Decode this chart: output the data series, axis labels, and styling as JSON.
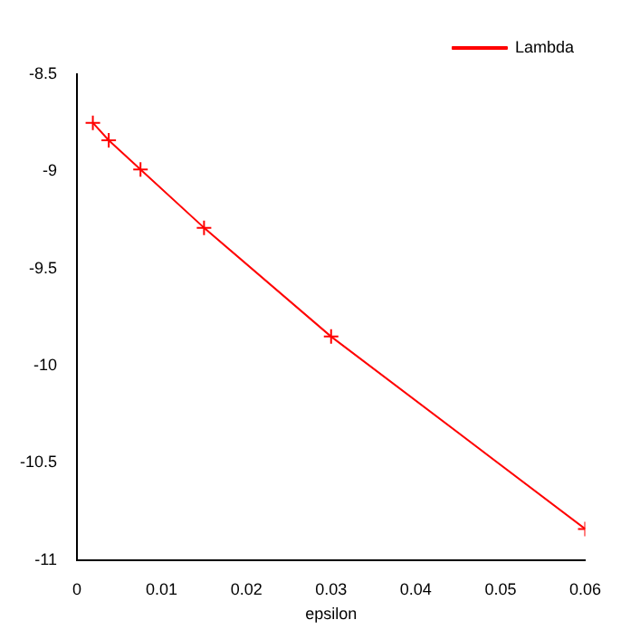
{
  "chart_data": {
    "type": "line",
    "xlabel": "epsilon",
    "x": [
      0.001875,
      0.00375,
      0.0075,
      0.015,
      0.03,
      0.06
    ],
    "series": [
      {
        "name": "Lambda",
        "color": "#ff0000",
        "values": [
          -8.75,
          -8.84,
          -8.99,
          -9.29,
          -9.85,
          -10.84
        ]
      }
    ],
    "xlim": [
      0,
      0.06
    ],
    "xticks": [
      0,
      0.01,
      0.02,
      0.03,
      0.04,
      0.05,
      0.06
    ],
    "ylim": [
      -11,
      -8.5
    ],
    "yticks": [
      -11,
      -10.5,
      -10,
      -9.5,
      -9,
      -8.5
    ],
    "grid": false,
    "legend": "top right",
    "marker": "cross",
    "line_style": "solid"
  }
}
